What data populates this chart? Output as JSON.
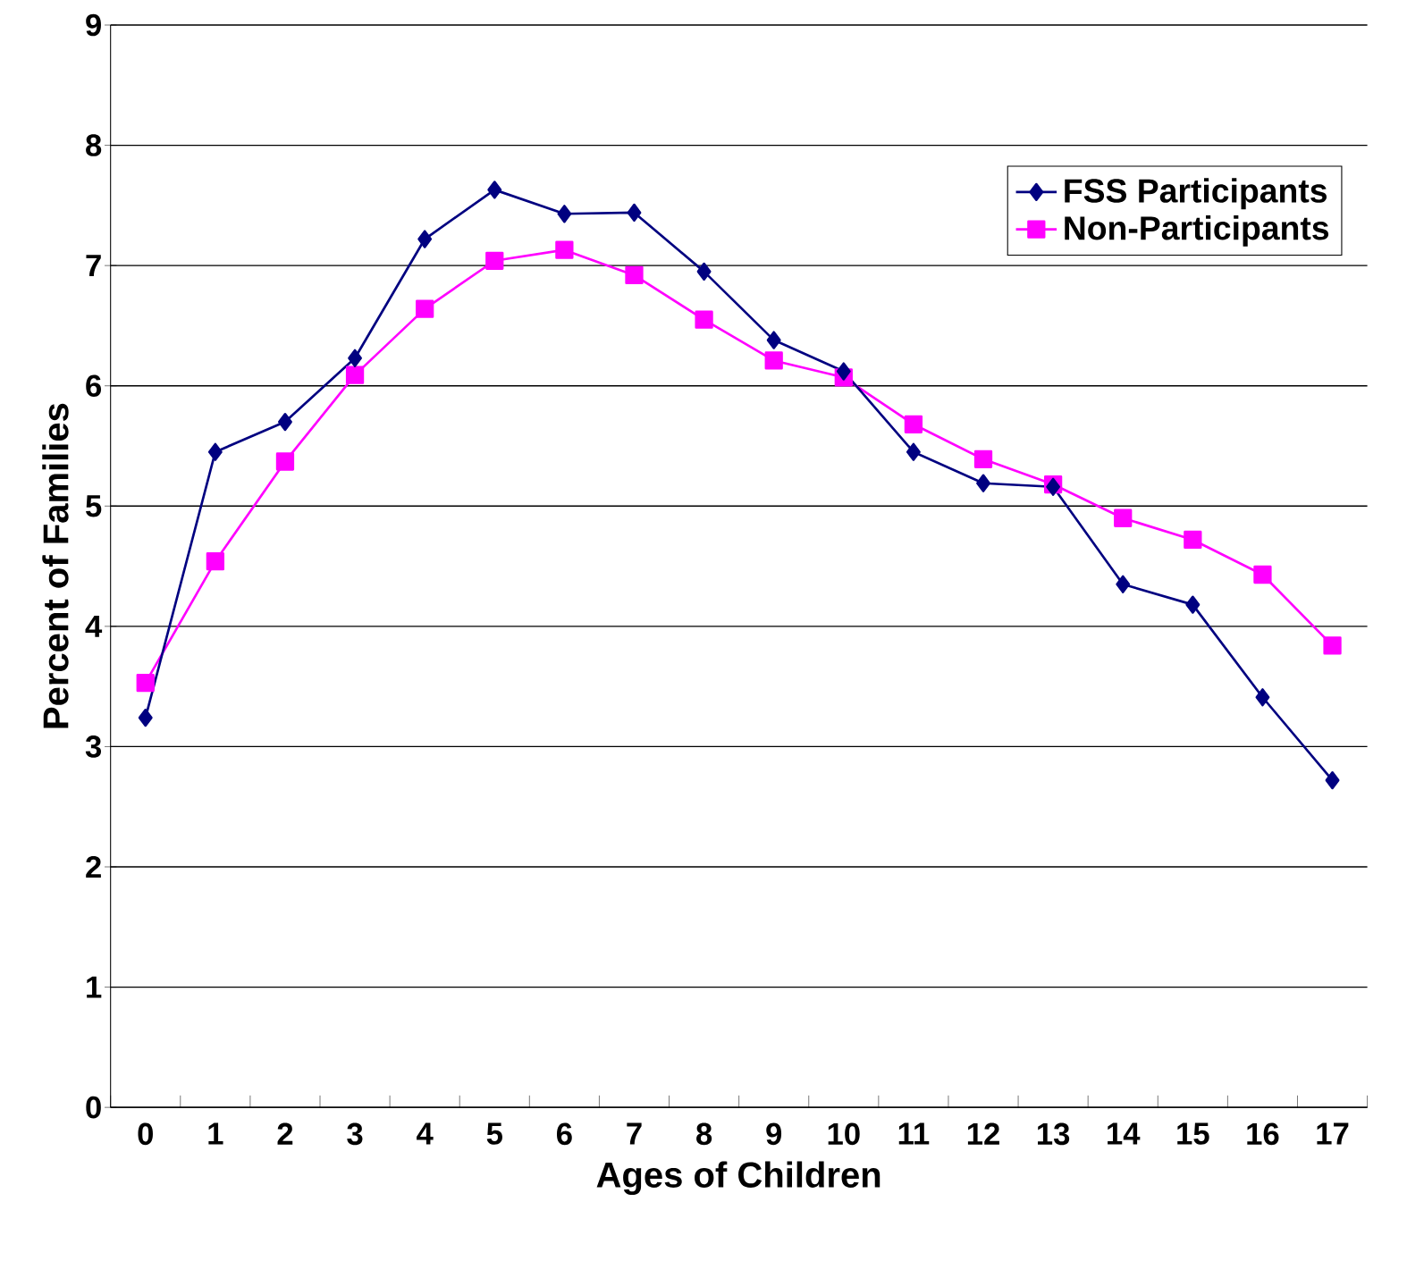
{
  "chart_data": {
    "type": "line",
    "xlabel": "Ages of Children",
    "ylabel": "Percent of Families",
    "categories": [
      "0",
      "1",
      "2",
      "3",
      "4",
      "5",
      "6",
      "7",
      "8",
      "9",
      "10",
      "11",
      "12",
      "13",
      "14",
      "15",
      "16",
      "17"
    ],
    "series": [
      {
        "name": "FSS Participants",
        "color": "#000080",
        "marker": "diamond",
        "values": [
          3.24,
          5.45,
          5.7,
          6.23,
          7.22,
          7.63,
          7.43,
          7.44,
          6.95,
          6.38,
          6.12,
          5.45,
          5.19,
          5.16,
          4.35,
          4.18,
          3.41,
          2.72
        ]
      },
      {
        "name": "Non-Participants",
        "color": "#ff00ff",
        "marker": "square",
        "values": [
          3.53,
          4.54,
          5.37,
          6.09,
          6.64,
          7.04,
          7.13,
          6.92,
          6.55,
          6.21,
          6.07,
          5.68,
          5.39,
          5.18,
          4.9,
          4.72,
          4.43,
          3.84
        ]
      }
    ],
    "ylim": [
      0,
      9
    ],
    "yticks": [
      0,
      1,
      2,
      3,
      4,
      5,
      6,
      7,
      8,
      9
    ],
    "grid": "y",
    "legend": "top right",
    "line_style": "solid"
  }
}
